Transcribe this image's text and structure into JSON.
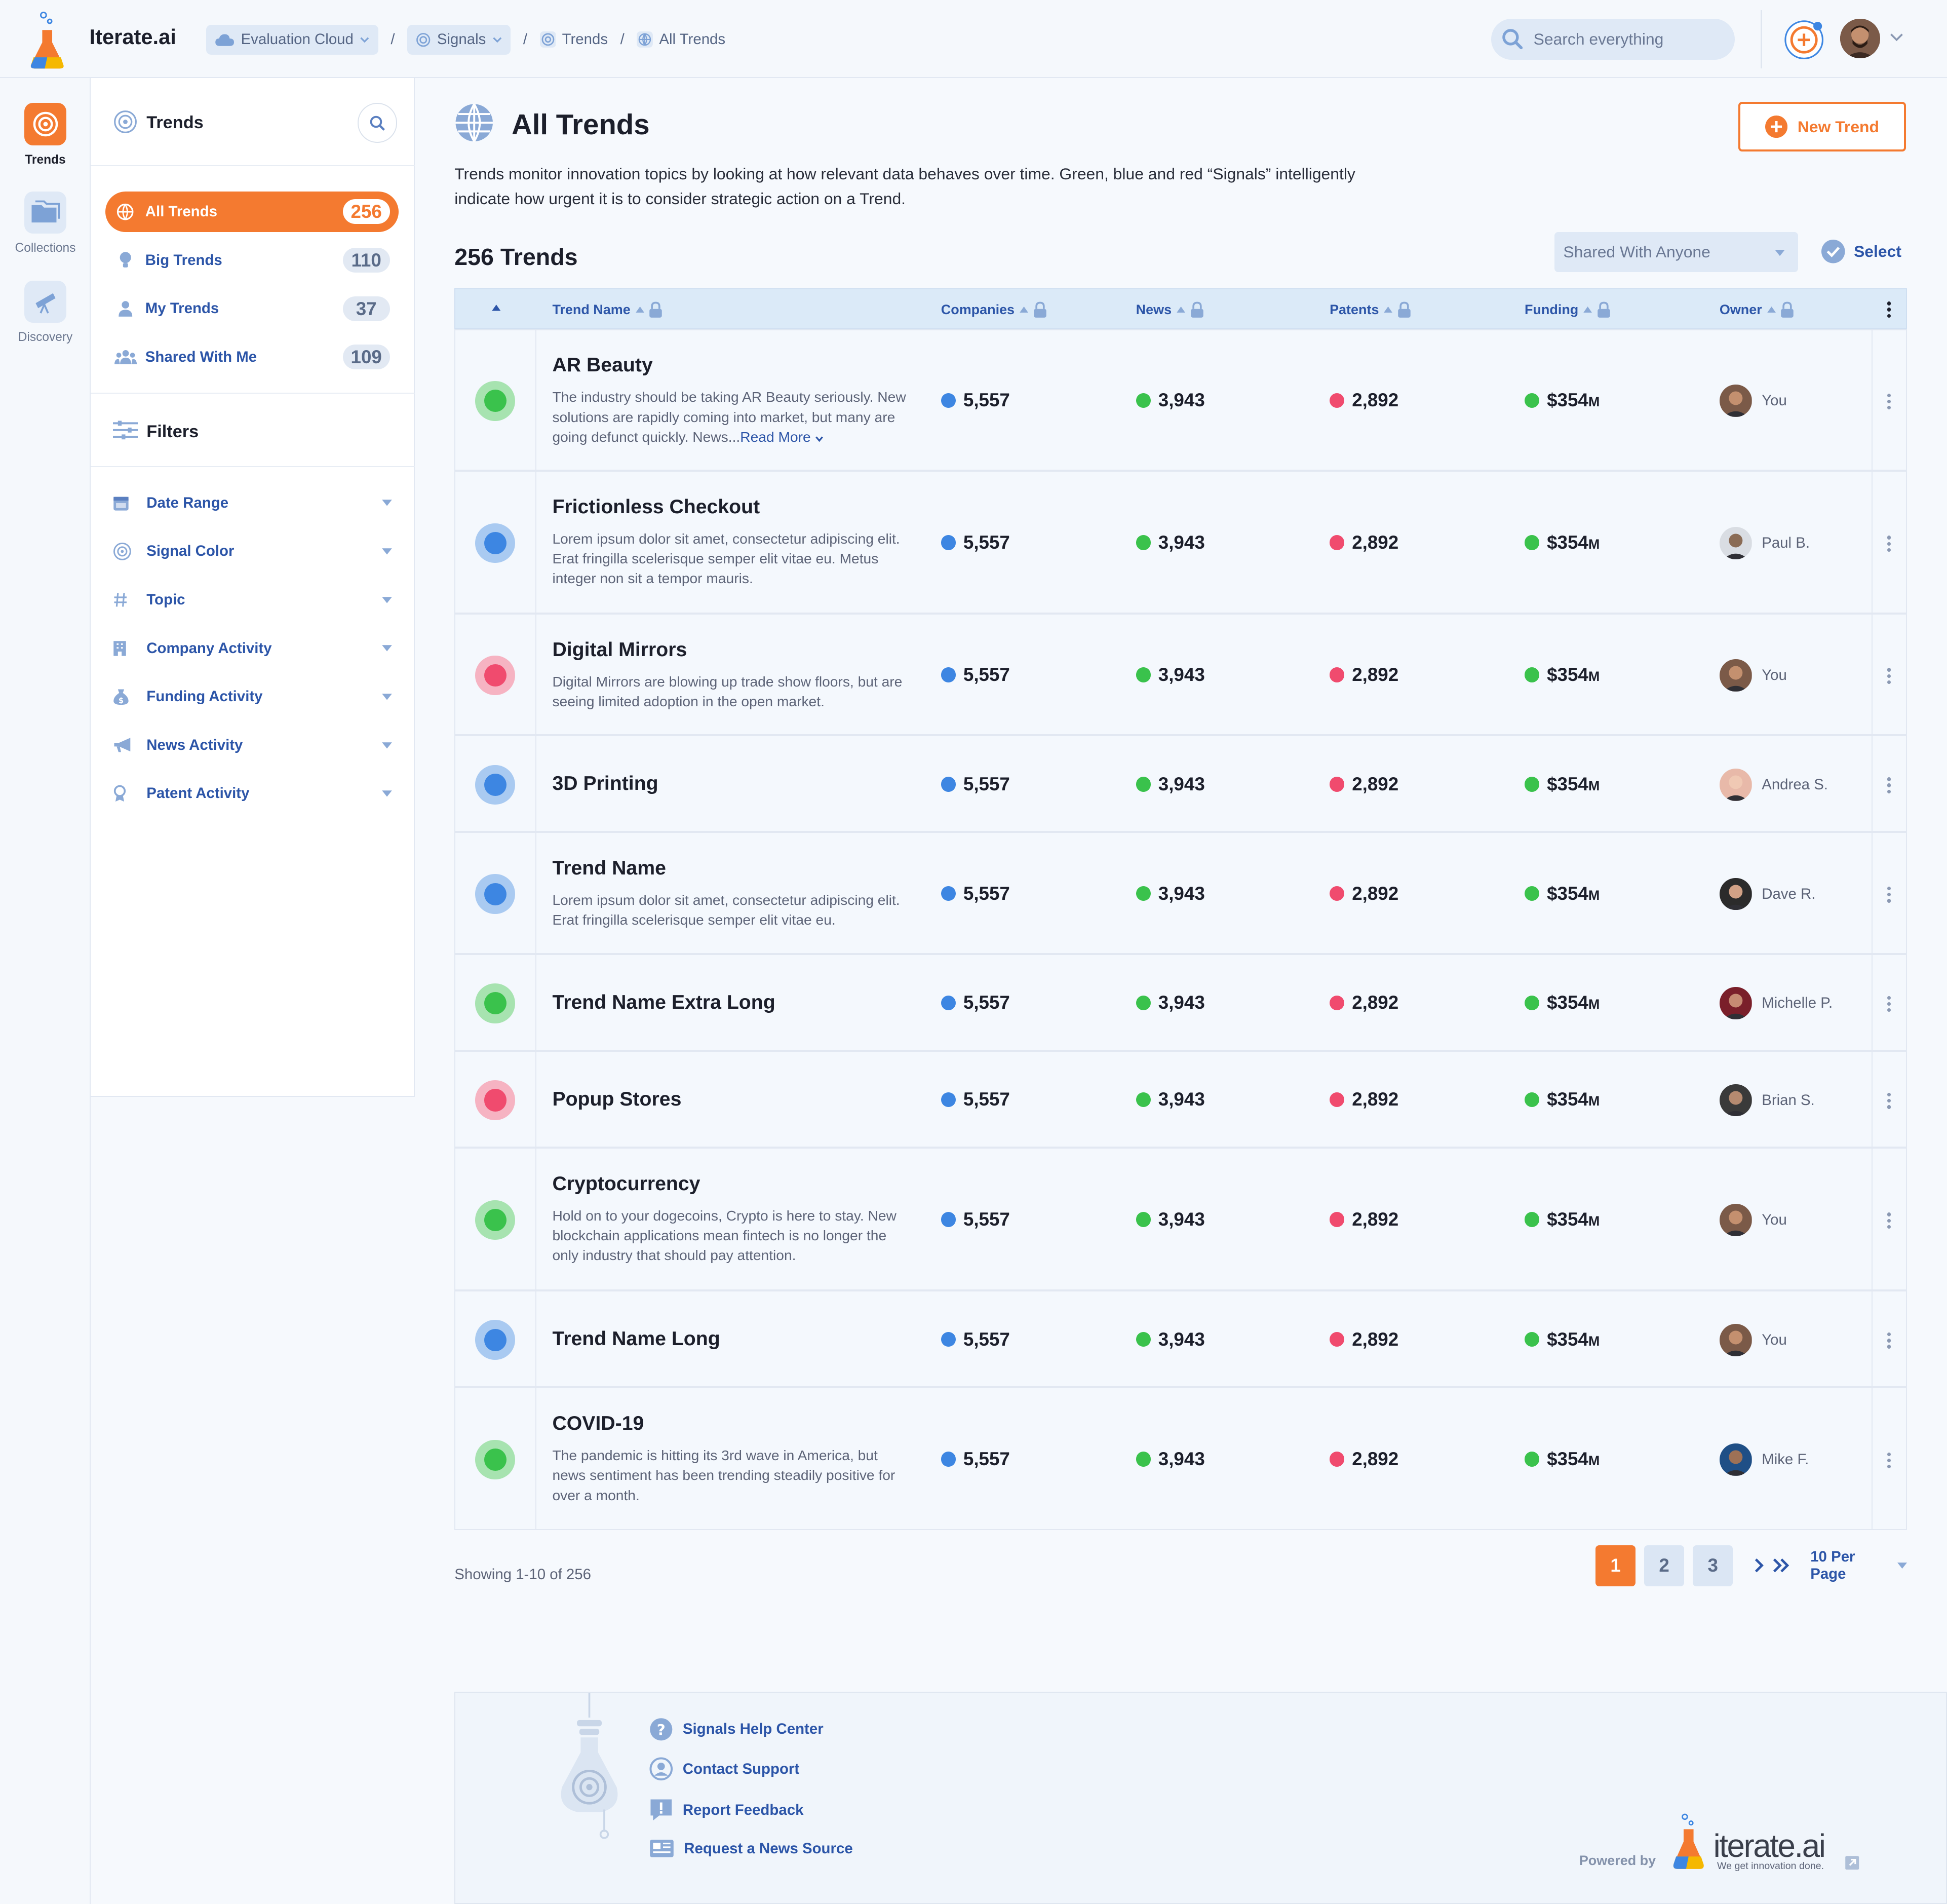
{
  "app": {
    "brand": "Iterate.ai",
    "breadcrumbs": [
      "Evaluation Cloud",
      "Signals",
      "Trends",
      "All Trends"
    ],
    "search_placeholder": "Search everything"
  },
  "rail": {
    "items": [
      {
        "label": "Trends",
        "icon": "target-icon",
        "active": true
      },
      {
        "label": "Collections",
        "icon": "folder-icon",
        "active": false
      },
      {
        "label": "Discovery",
        "icon": "telescope-icon",
        "active": false
      }
    ]
  },
  "sidebar": {
    "title": "Trends",
    "nav": [
      {
        "label": "All Trends",
        "count": "256",
        "icon": "globe-icon",
        "active": true
      },
      {
        "label": "Big Trends",
        "count": "110",
        "icon": "lightbulb-icon",
        "active": false
      },
      {
        "label": "My Trends",
        "count": "37",
        "icon": "user-icon",
        "active": false
      },
      {
        "label": "Shared With Me",
        "count": "109",
        "icon": "users-icon",
        "active": false
      }
    ],
    "filters_title": "Filters",
    "filters": [
      {
        "label": "Date Range",
        "icon": "calendar-icon"
      },
      {
        "label": "Signal Color",
        "icon": "target-icon"
      },
      {
        "label": "Topic",
        "icon": "hash-icon"
      },
      {
        "label": "Company Activity",
        "icon": "building-icon"
      },
      {
        "label": "Funding Activity",
        "icon": "money-bag-icon"
      },
      {
        "label": "News Activity",
        "icon": "megaphone-icon"
      },
      {
        "label": "Patent Activity",
        "icon": "patent-icon"
      }
    ]
  },
  "main": {
    "title": "All Trends",
    "description": "Trends monitor innovation topics by looking at how relevant data behaves over time. Green, blue and red “Signals” intelligently indicate how urgent it is to consider strategic action on a Trend.",
    "new_button": "New Trend",
    "count_title": "256 Trends",
    "shared_filter": "Shared With Anyone",
    "select_label": "Select",
    "columns": [
      "Trend Name",
      "Companies",
      "News",
      "Patents",
      "Funding",
      "Owner"
    ],
    "rows": [
      {
        "signal": "green",
        "name": "AR Beauty",
        "desc": "The industry should be taking AR Beauty seriously. New solutions are rapidly coming into market, but many are going defunct quickly. News...",
        "read_more": "Read More",
        "companies": "5,557",
        "news": "3,943",
        "patents": "2,892",
        "funding": "$354",
        "funding_unit": "M",
        "owner": "You"
      },
      {
        "signal": "blue",
        "name": "Frictionless Checkout",
        "desc": "Lorem ipsum dolor sit amet, consectetur adipiscing elit. Erat fringilla scelerisque semper elit vitae eu. Metus integer non sit a tempor mauris.",
        "companies": "5,557",
        "news": "3,943",
        "patents": "2,892",
        "funding": "$354",
        "funding_unit": "M",
        "owner": "Paul B."
      },
      {
        "signal": "red",
        "name": "Digital Mirrors",
        "desc": "Digital Mirrors are blowing up trade show floors, but are seeing limited adoption in the open market.",
        "companies": "5,557",
        "news": "3,943",
        "patents": "2,892",
        "funding": "$354",
        "funding_unit": "M",
        "owner": "You"
      },
      {
        "signal": "blue",
        "name": "3D Printing",
        "desc": "",
        "companies": "5,557",
        "news": "3,943",
        "patents": "2,892",
        "funding": "$354",
        "funding_unit": "M",
        "owner": "Andrea S."
      },
      {
        "signal": "blue",
        "name": "Trend Name",
        "desc": "Lorem ipsum dolor sit amet, consectetur adipiscing elit. Erat fringilla scelerisque semper elit vitae eu.",
        "companies": "5,557",
        "news": "3,943",
        "patents": "2,892",
        "funding": "$354",
        "funding_unit": "M",
        "owner": "Dave R."
      },
      {
        "signal": "green",
        "name": "Trend Name Extra Long",
        "desc": "",
        "companies": "5,557",
        "news": "3,943",
        "patents": "2,892",
        "funding": "$354",
        "funding_unit": "M",
        "owner": "Michelle P."
      },
      {
        "signal": "red",
        "name": "Popup Stores",
        "desc": "",
        "companies": "5,557",
        "news": "3,943",
        "patents": "2,892",
        "funding": "$354",
        "funding_unit": "M",
        "owner": "Brian S."
      },
      {
        "signal": "green",
        "name": "Cryptocurrency",
        "desc": "Hold on to your dogecoins, Crypto is here to stay. New blockchain applications mean fintech is no longer the only industry that should pay attention.",
        "companies": "5,557",
        "news": "3,943",
        "patents": "2,892",
        "funding": "$354",
        "funding_unit": "M",
        "owner": "You"
      },
      {
        "signal": "blue",
        "name": "Trend Name Long",
        "desc": "",
        "companies": "5,557",
        "news": "3,943",
        "patents": "2,892",
        "funding": "$354",
        "funding_unit": "M",
        "owner": "You"
      },
      {
        "signal": "green",
        "name": "COVID-19",
        "desc": "The pandemic is hitting its 3rd wave in America, but news sentiment has been trending steadily positive for over a month.",
        "companies": "5,557",
        "news": "3,943",
        "patents": "2,892",
        "funding": "$354",
        "funding_unit": "M",
        "owner": "Mike F."
      }
    ],
    "showing": "Showing 1-10 of 256",
    "pages": [
      "1",
      "2",
      "3"
    ],
    "current_page": "1",
    "per_page": "10 Per Page"
  },
  "footer": {
    "links": [
      {
        "label": "Signals Help Center",
        "icon": "question-icon"
      },
      {
        "label": "Contact Support",
        "icon": "support-icon"
      },
      {
        "label": "Report Feedback",
        "icon": "feedback-icon"
      },
      {
        "label": "Request a News Source",
        "icon": "newspaper-icon"
      }
    ],
    "powered_by": "Powered by",
    "logo_text": "iterate.ai",
    "tagline": "We get innovation done."
  },
  "colors": {
    "accent": "#f47a30",
    "link": "#2c55a8",
    "signal_green": "#3ac24c",
    "signal_blue": "#3d86e2",
    "signal_red": "#f04b6e"
  }
}
